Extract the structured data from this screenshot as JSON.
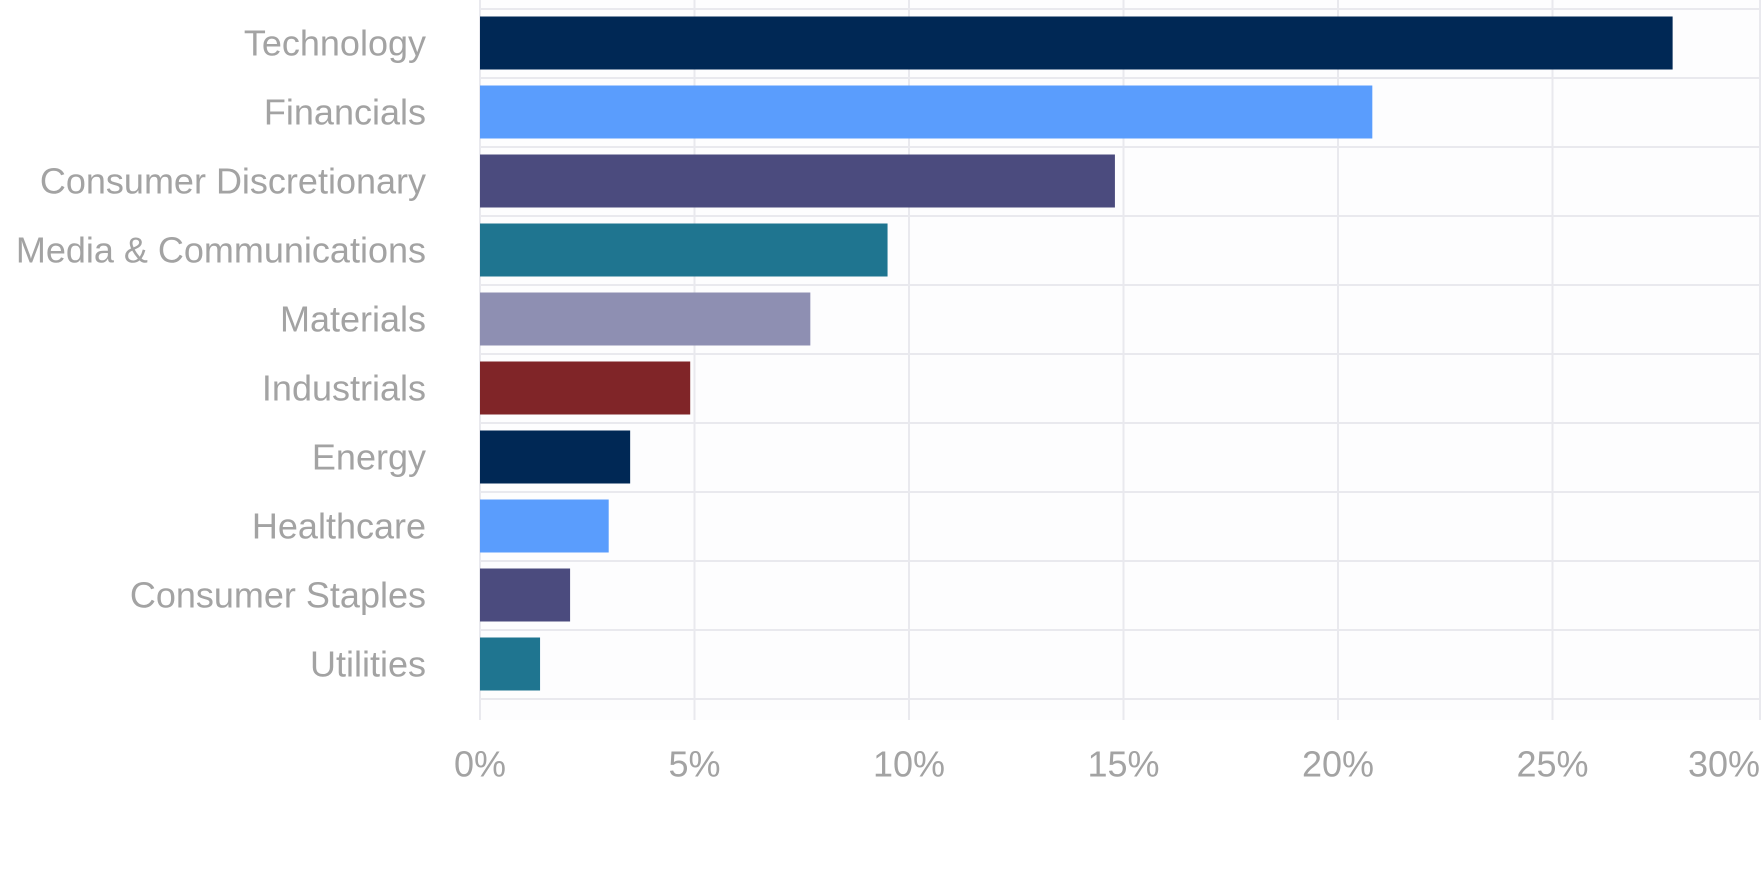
{
  "chart_data": {
    "type": "bar",
    "orientation": "horizontal",
    "title": "",
    "xlabel": "",
    "ylabel": "",
    "xlim": [
      0,
      30
    ],
    "x_ticks": [
      0,
      5,
      10,
      15,
      20,
      25,
      30
    ],
    "x_tick_labels": [
      "0%",
      "5%",
      "10%",
      "15%",
      "20%",
      "25%",
      "30%"
    ],
    "grid": true,
    "legend": "none",
    "categories": [
      "Technology",
      "Financials",
      "Consumer Discretionary",
      "Media & Communications",
      "Materials",
      "Industrials",
      "Energy",
      "Healthcare",
      "Consumer Staples",
      "Utilities"
    ],
    "values": [
      27.8,
      20.8,
      14.8,
      9.5,
      7.7,
      4.9,
      3.5,
      3.0,
      2.1,
      1.4
    ],
    "colors": [
      "#002855",
      "#5a9dfd",
      "#4b4b7e",
      "#1f7590",
      "#8e8fb2",
      "#802528",
      "#002855",
      "#5a9dfd",
      "#4b4b7e",
      "#1f7590"
    ]
  }
}
